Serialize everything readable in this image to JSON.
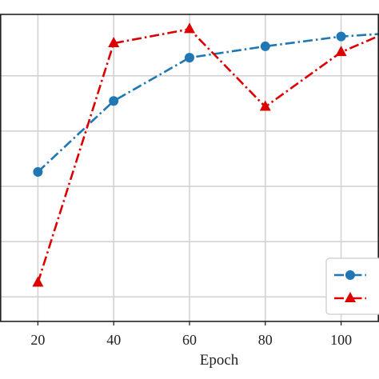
{
  "chart_data": {
    "type": "line",
    "xlabel": "Epoch",
    "x": [
      20,
      40,
      60,
      80,
      100,
      110
    ],
    "x_ticks": [
      "20",
      "40",
      "60",
      "80",
      "100"
    ],
    "xlim": [
      10,
      110
    ],
    "ylim": [
      0.0,
      1.0
    ],
    "grid": true,
    "legend": "bottom-right",
    "series": [
      {
        "color": "#1f77b4",
        "marker": "circle",
        "line_style": "dash-dot",
        "values": [
          0.487,
          0.718,
          0.859,
          0.896,
          0.928,
          0.936
        ]
      },
      {
        "color": "#dd0000",
        "marker": "triangle",
        "line_style": "dash-dot",
        "values": [
          0.126,
          0.906,
          0.952,
          0.699,
          0.877,
          0.93
        ]
      }
    ]
  }
}
